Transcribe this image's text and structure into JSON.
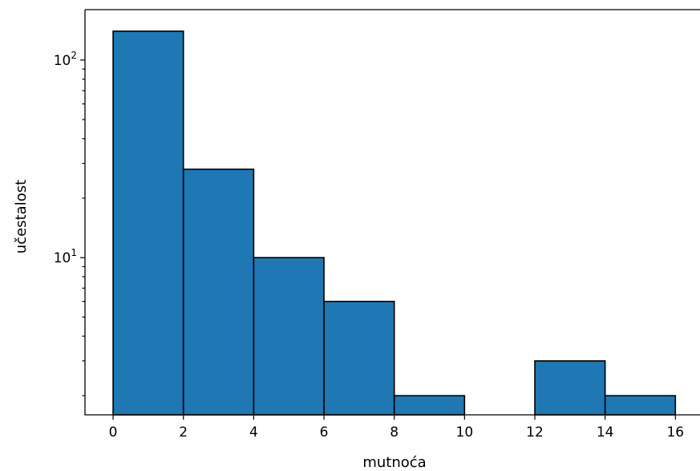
{
  "chart_data": {
    "type": "bar",
    "subtype": "histogram",
    "title": "",
    "xlabel": "mutnoća",
    "ylabel": "učestalost",
    "yscale": "log",
    "bin_edges": [
      0,
      2,
      4,
      6,
      8,
      10,
      12,
      14,
      16
    ],
    "counts": [
      140,
      28,
      10,
      6,
      2,
      0,
      3,
      2
    ],
    "xlim": [
      -0.8,
      16.7
    ],
    "ylim": [
      1.6,
      180
    ],
    "xticks": [
      "0",
      "2",
      "4",
      "6",
      "8",
      "10",
      "12",
      "14",
      "16"
    ],
    "yticks": [
      {
        "value": 10,
        "base": "10",
        "exp": "1"
      },
      {
        "value": 100,
        "base": "10",
        "exp": "2"
      }
    ],
    "grid": false,
    "bar_color": "#1f77b4",
    "edge_color": "#000000"
  }
}
